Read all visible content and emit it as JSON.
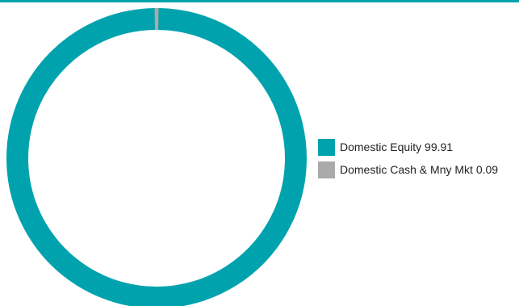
{
  "colors": {
    "accent": "#00a3ad",
    "secondary": "#aaaaaa",
    "background": "#ffffff"
  },
  "chart_data": {
    "type": "pie",
    "variant": "donut",
    "title": "",
    "legend_position": "right",
    "slices": [
      {
        "name": "Domestic Equity",
        "value": 99.91,
        "value_label": "99.91",
        "color": "#00a3ad"
      },
      {
        "name": "Domestic Cash & Mny Mkt",
        "value": 0.09,
        "value_label": "0.09",
        "color": "#aaaaaa"
      }
    ]
  }
}
